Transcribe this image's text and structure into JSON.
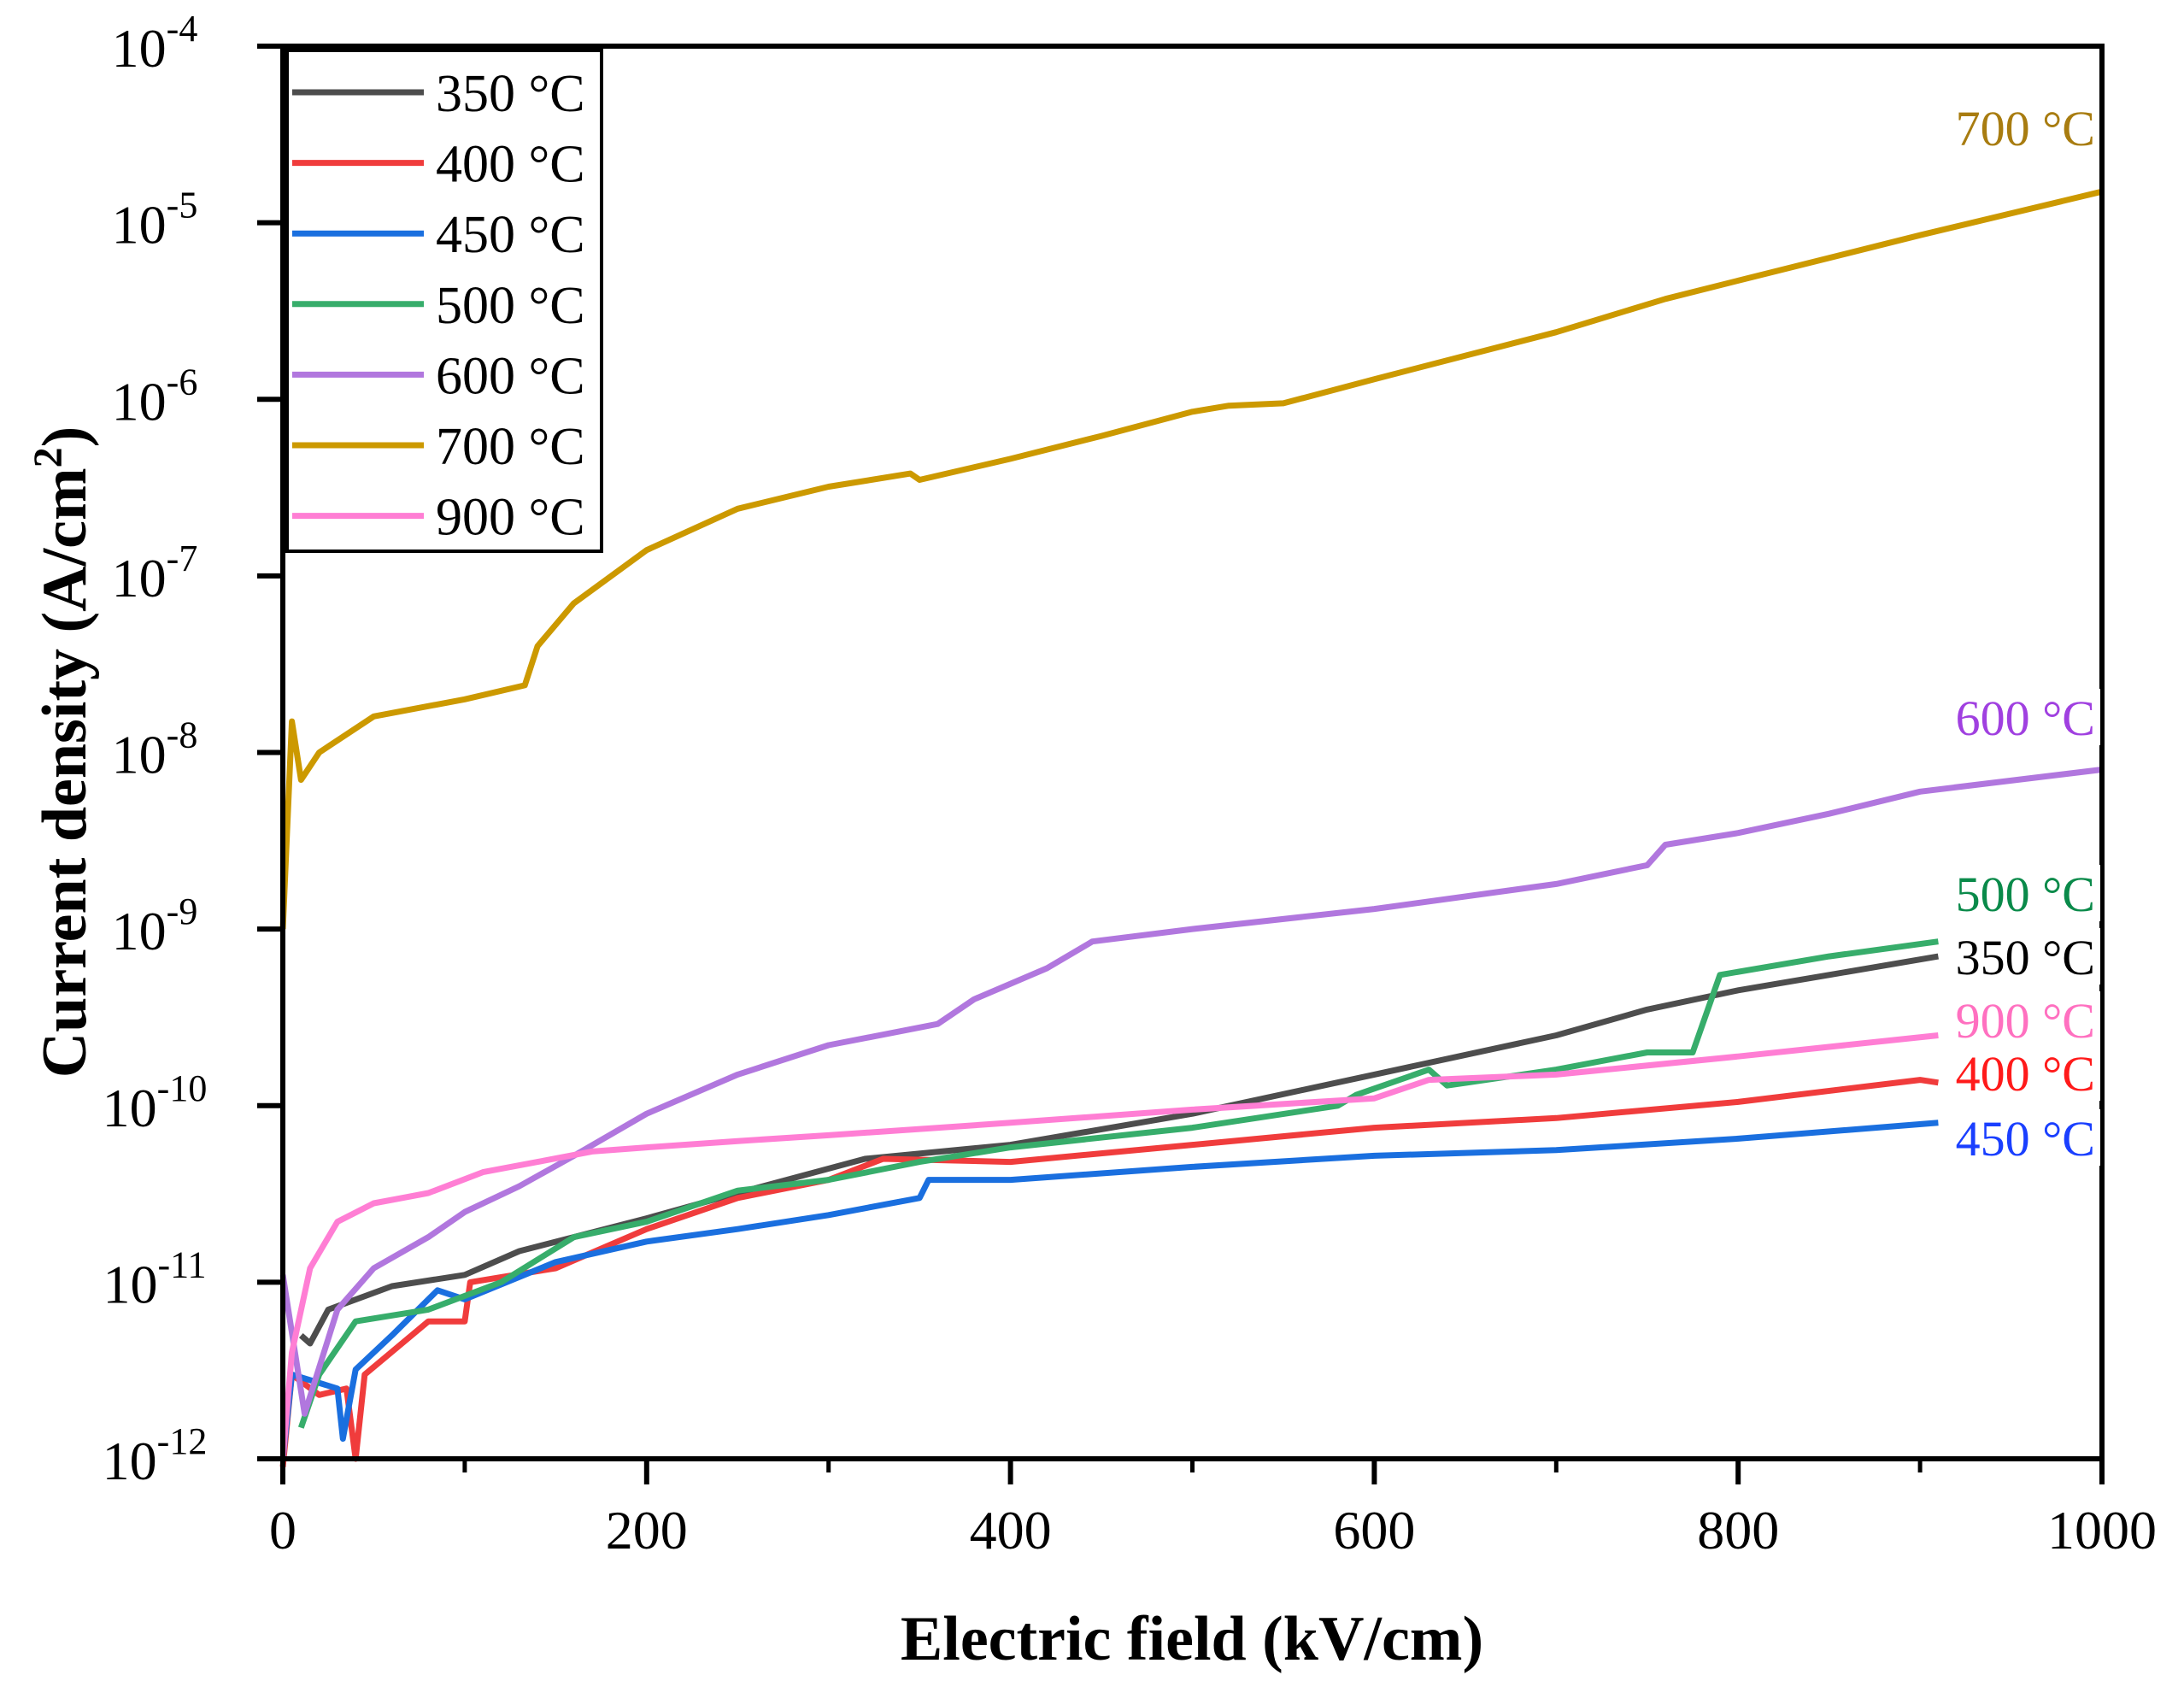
{
  "chart_data": {
    "type": "line",
    "xlabel": "Electric field (kV/cm)",
    "ylabel_main": "Current density (A/cm",
    "ylabel_sup": "2",
    "ylabel_end": ")",
    "xlim": [
      0,
      1000
    ],
    "ylim": [
      1e-12,
      0.0001
    ],
    "yscale": "log",
    "xticks": [
      0,
      200,
      400,
      600,
      800,
      1000
    ],
    "yticks": [
      {
        "base": "10",
        "exp": "-12",
        "value": 1e-12
      },
      {
        "base": "10",
        "exp": "-11",
        "value": 1e-11
      },
      {
        "base": "10",
        "exp": "-10",
        "value": 1e-10
      },
      {
        "base": "10",
        "exp": "-9",
        "value": 1e-09
      },
      {
        "base": "10",
        "exp": "-8",
        "value": 1e-08
      },
      {
        "base": "10",
        "exp": "-7",
        "value": 1e-07
      },
      {
        "base": "10",
        "exp": "-6",
        "value": 1e-06
      },
      {
        "base": "10",
        "exp": "-5",
        "value": 1e-05
      },
      {
        "base": "10",
        "exp": "-4",
        "value": 0.0001
      }
    ],
    "grid": false,
    "legend_position": "top-left",
    "series": [
      {
        "name": "350 °C",
        "color": "#4d4d4d",
        "label_color": "#000000",
        "x": [
          10,
          15,
          25,
          60,
          100,
          130,
          200,
          250,
          320,
          400,
          500,
          600,
          700,
          750,
          800,
          850,
          910
        ],
        "y": [
          5e-12,
          4.5e-12,
          7e-12,
          9.5e-12,
          1.1e-11,
          1.5e-11,
          2.3e-11,
          3.2e-11,
          5e-11,
          6e-11,
          9e-11,
          1.5e-10,
          2.5e-10,
          3.5e-10,
          4.5e-10,
          5.5e-10,
          7e-10
        ]
      },
      {
        "name": "400 °C",
        "color": "#f03c3c",
        "label_color": "#ff1a1a",
        "x": [
          0,
          5,
          20,
          35,
          40,
          45,
          80,
          100,
          103,
          150,
          200,
          250,
          300,
          330,
          400,
          500,
          600,
          700,
          800,
          900,
          910
        ],
        "y": [
          9e-13,
          3e-12,
          2.3e-12,
          2.5e-12,
          1e-12,
          3e-12,
          6e-12,
          6e-12,
          1e-11,
          1.2e-11,
          2e-11,
          3e-11,
          3.8e-11,
          5e-11,
          4.8e-11,
          6e-11,
          7.5e-11,
          8.5e-11,
          1.05e-10,
          1.4e-10,
          1.35e-10
        ]
      },
      {
        "name": "450 °C",
        "color": "#1a6fdf",
        "label_color": "#1a3fff",
        "x": [
          0,
          5,
          30,
          33,
          40,
          60,
          85,
          100,
          150,
          200,
          250,
          300,
          350,
          355,
          400,
          500,
          600,
          700,
          800,
          910
        ],
        "y": [
          1e-12,
          3e-12,
          2.5e-12,
          1.3e-12,
          3.2e-12,
          5e-12,
          9e-12,
          8e-12,
          1.3e-11,
          1.7e-11,
          2e-11,
          2.4e-11,
          3e-11,
          3.8e-11,
          3.8e-11,
          4.5e-11,
          5.2e-11,
          5.6e-11,
          6.5e-11,
          8e-11
        ]
      },
      {
        "name": "500 °C",
        "color": "#37ad6b",
        "label_color": "#0a8a4a",
        "x": [
          10,
          20,
          40,
          80,
          120,
          160,
          200,
          250,
          300,
          350,
          400,
          500,
          580,
          590,
          630,
          640,
          700,
          750,
          775,
          790,
          850,
          910
        ],
        "y": [
          1.5e-12,
          3e-12,
          6e-12,
          7e-12,
          1e-11,
          1.8e-11,
          2.2e-11,
          3.3e-11,
          3.8e-11,
          4.8e-11,
          5.8e-11,
          7.5e-11,
          1e-10,
          1.15e-10,
          1.6e-10,
          1.3e-10,
          1.6e-10,
          2e-10,
          2e-10,
          5.5e-10,
          7e-10,
          8.5e-10
        ]
      },
      {
        "name": "600 °C",
        "color": "#b177de",
        "label_color": "#a040e0",
        "x": [
          0,
          12,
          30,
          50,
          80,
          100,
          130,
          160,
          200,
          250,
          300,
          360,
          380,
          420,
          445,
          500,
          600,
          700,
          750,
          760,
          800,
          850,
          900,
          1000
        ],
        "y": [
          1.1e-11,
          1.8e-12,
          7e-12,
          1.2e-11,
          1.8e-11,
          2.5e-11,
          3.5e-11,
          5.2e-11,
          9e-11,
          1.5e-10,
          2.2e-10,
          2.9e-10,
          4e-10,
          6e-10,
          8.5e-10,
          1e-09,
          1.3e-09,
          1.8e-09,
          2.3e-09,
          3e-09,
          3.5e-09,
          4.5e-09,
          6e-09,
          8e-09
        ]
      },
      {
        "name": "700 °C",
        "color": "#cc9900",
        "label_color": "#a87c10",
        "x": [
          0,
          5,
          10,
          20,
          50,
          100,
          133,
          140,
          160,
          200,
          250,
          300,
          345,
          350,
          400,
          450,
          500,
          520,
          550,
          600,
          700,
          760,
          800,
          900,
          1000
        ],
        "y": [
          1e-09,
          1.5e-08,
          7e-09,
          1e-08,
          1.6e-08,
          2e-08,
          2.4e-08,
          4e-08,
          7e-08,
          1.4e-07,
          2.4e-07,
          3.2e-07,
          3.8e-07,
          3.5e-07,
          4.6e-07,
          6.2e-07,
          8.5e-07,
          9.2e-07,
          9.5e-07,
          1.3e-06,
          2.4e-06,
          3.7e-06,
          4.7e-06,
          8.5e-06,
          1.5e-05
        ]
      },
      {
        "name": "900 °C",
        "color": "#ff7ed4",
        "label_color": "#ff70c0",
        "x": [
          0,
          5,
          15,
          30,
          50,
          80,
          110,
          140,
          170,
          200,
          250,
          300,
          400,
          500,
          600,
          630,
          700,
          800,
          910
        ],
        "y": [
          1e-12,
          4e-12,
          1.2e-11,
          2.2e-11,
          2.8e-11,
          3.2e-11,
          4.2e-11,
          4.8e-11,
          5.5e-11,
          5.8e-11,
          6.3e-11,
          6.8e-11,
          8e-11,
          9.5e-11,
          1.1e-10,
          1.4e-10,
          1.5e-10,
          1.9e-10,
          2.5e-10
        ]
      }
    ],
    "annotations": [
      {
        "text": "700 °C",
        "series": "700 °C"
      },
      {
        "text": "600 °C",
        "series": "600 °C"
      },
      {
        "text": "500 °C",
        "series": "500 °C"
      },
      {
        "text": "350 °C",
        "series": "350 °C"
      },
      {
        "text": "900 °C",
        "series": "900 °C"
      },
      {
        "text": "400 °C",
        "series": "400 °C"
      },
      {
        "text": "450 °C",
        "series": "450 °C"
      }
    ]
  }
}
